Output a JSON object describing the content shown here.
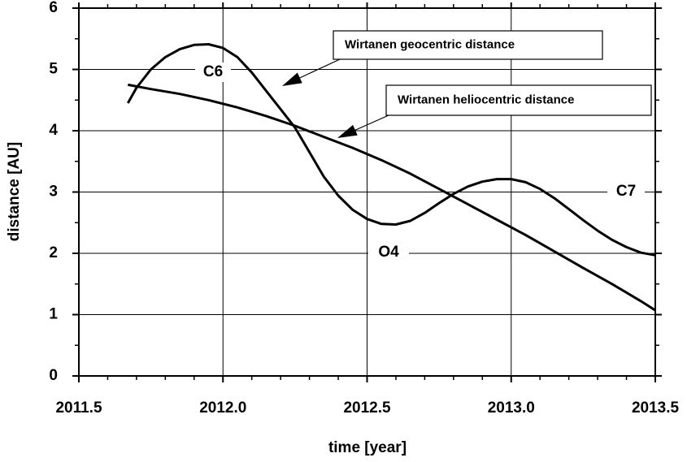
{
  "chart_data": {
    "type": "line",
    "xlabel": "time [year]",
    "ylabel": "distance [AU]",
    "xlim": [
      2011.5,
      2013.5
    ],
    "ylim": [
      0,
      6
    ],
    "xticks": [
      2011.5,
      {
        "value": 2012,
        "label": "2012.0"
      },
      2012.5,
      {
        "value": 2013,
        "label": "2013.0"
      },
      2013.5
    ],
    "yticks": [
      0,
      1,
      2,
      3,
      4,
      5,
      6
    ],
    "xminorticks": [
      2011.6,
      2011.7,
      2011.8,
      2011.9,
      2012.1,
      2012.2,
      2012.3,
      2012.4,
      2012.6,
      2012.7,
      2012.8,
      2012.9,
      2013.1,
      2013.2,
      2013.3,
      2013.4
    ],
    "yminorticks": [
      0.5,
      1.5,
      2.5,
      3.5,
      4.5,
      5.5
    ],
    "grid": true,
    "series": [
      {
        "name": "Wirtanen geocentric distance",
        "color": "#000000",
        "x": [
          2011.67,
          2011.7,
          2011.75,
          2011.8,
          2011.85,
          2011.9,
          2011.95,
          2012.0,
          2012.05,
          2012.1,
          2012.15,
          2012.2,
          2012.25,
          2012.3,
          2012.35,
          2012.4,
          2012.45,
          2012.5,
          2012.55,
          2012.6,
          2012.65,
          2012.7,
          2012.75,
          2012.8,
          2012.85,
          2012.9,
          2012.95,
          2013.0,
          2013.05,
          2013.1,
          2013.15,
          2013.2,
          2013.25,
          2013.3,
          2013.35,
          2013.4,
          2013.45,
          2013.5
        ],
        "values": [
          4.45,
          4.7,
          5.0,
          5.2,
          5.33,
          5.4,
          5.41,
          5.35,
          5.2,
          4.95,
          4.65,
          4.35,
          4.05,
          3.65,
          3.25,
          2.94,
          2.71,
          2.56,
          2.48,
          2.47,
          2.53,
          2.66,
          2.82,
          2.97,
          3.09,
          3.17,
          3.21,
          3.21,
          3.16,
          3.05,
          2.9,
          2.72,
          2.54,
          2.37,
          2.22,
          2.1,
          2.01,
          1.97
        ]
      },
      {
        "name": "Wirtanen heliocentric distance",
        "color": "#000000",
        "x": [
          2011.67,
          2011.75,
          2011.85,
          2011.95,
          2012.05,
          2012.15,
          2012.25,
          2012.35,
          2012.45,
          2012.55,
          2012.65,
          2012.75,
          2012.85,
          2012.95,
          2013.05,
          2013.15,
          2013.25,
          2013.35,
          2013.45,
          2013.5
        ],
        "values": [
          4.75,
          4.68,
          4.6,
          4.5,
          4.38,
          4.24,
          4.08,
          3.9,
          3.72,
          3.52,
          3.3,
          3.05,
          2.8,
          2.55,
          2.3,
          2.03,
          1.76,
          1.5,
          1.22,
          1.07
        ]
      }
    ],
    "annotations": [
      "C6",
      "O4",
      "C7"
    ]
  }
}
